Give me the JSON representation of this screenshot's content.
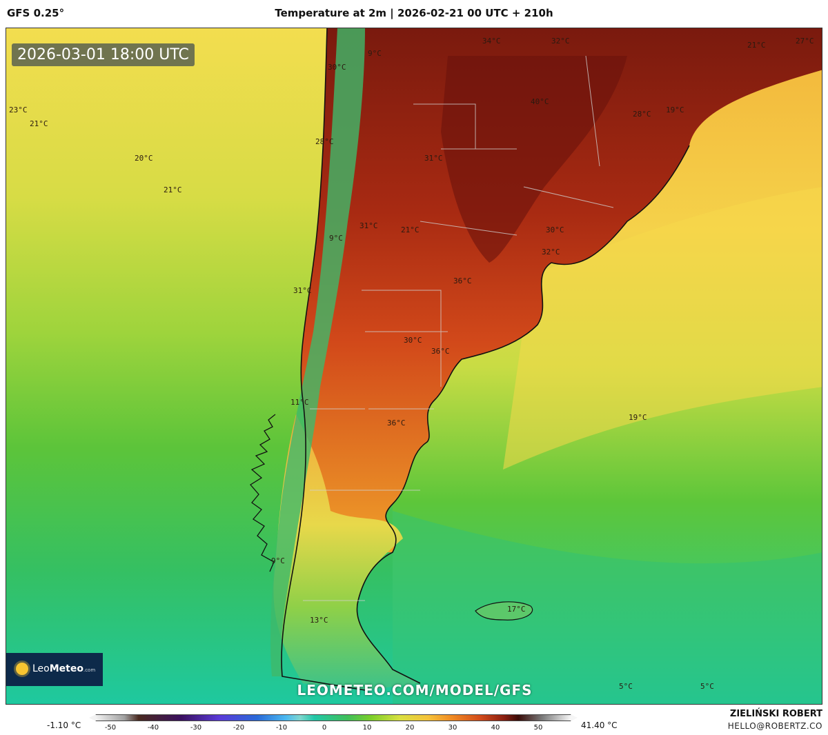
{
  "header": {
    "model": "GFS 0.25°",
    "title": "Temperature at 2m | 2026-02-21 00 UTC + 210h"
  },
  "map": {
    "valid_time": "2026-03-01 18:00 UTC",
    "watermark": "LEOMETEO.COM/MODEL/GFS",
    "logo": {
      "brand_light": "Leo",
      "brand_bold": "Meteo",
      "suffix": ".com"
    },
    "labels": [
      "23°C",
      "21°C",
      "20°C",
      "21°C",
      "30°C",
      "28°C",
      "31°C",
      "31°C",
      "21°C",
      "34°C",
      "32°C",
      "40°C",
      "31°C",
      "21°C",
      "27°C",
      "28°C",
      "19°C",
      "30°C",
      "32°C",
      "36°C",
      "30°C",
      "36°C",
      "36°C",
      "19°C",
      "11°C",
      "13°C",
      "17°C",
      "5°C",
      "5°C",
      "9°C",
      "9°C",
      "9°C"
    ],
    "colors": {
      "ocean_warm": "#f2d84a",
      "ocean_mid": "#9fd43a",
      "ocean_cool": "#22c7a8",
      "land_hot": "#d2421a",
      "land_very_hot": "#7a1a0e",
      "land_mild": "#f5a629"
    }
  },
  "legend": {
    "min_label": "-1.10 °C",
    "max_label": "41.40 °C",
    "ticks": [
      "-50",
      "-40",
      "-30",
      "-20",
      "-10",
      "0",
      "10",
      "20",
      "30",
      "40",
      "50"
    ]
  },
  "credits": {
    "author": "ZIELIŃSKI ROBERT",
    "email": "HELLO@ROBERTZ.CO"
  }
}
